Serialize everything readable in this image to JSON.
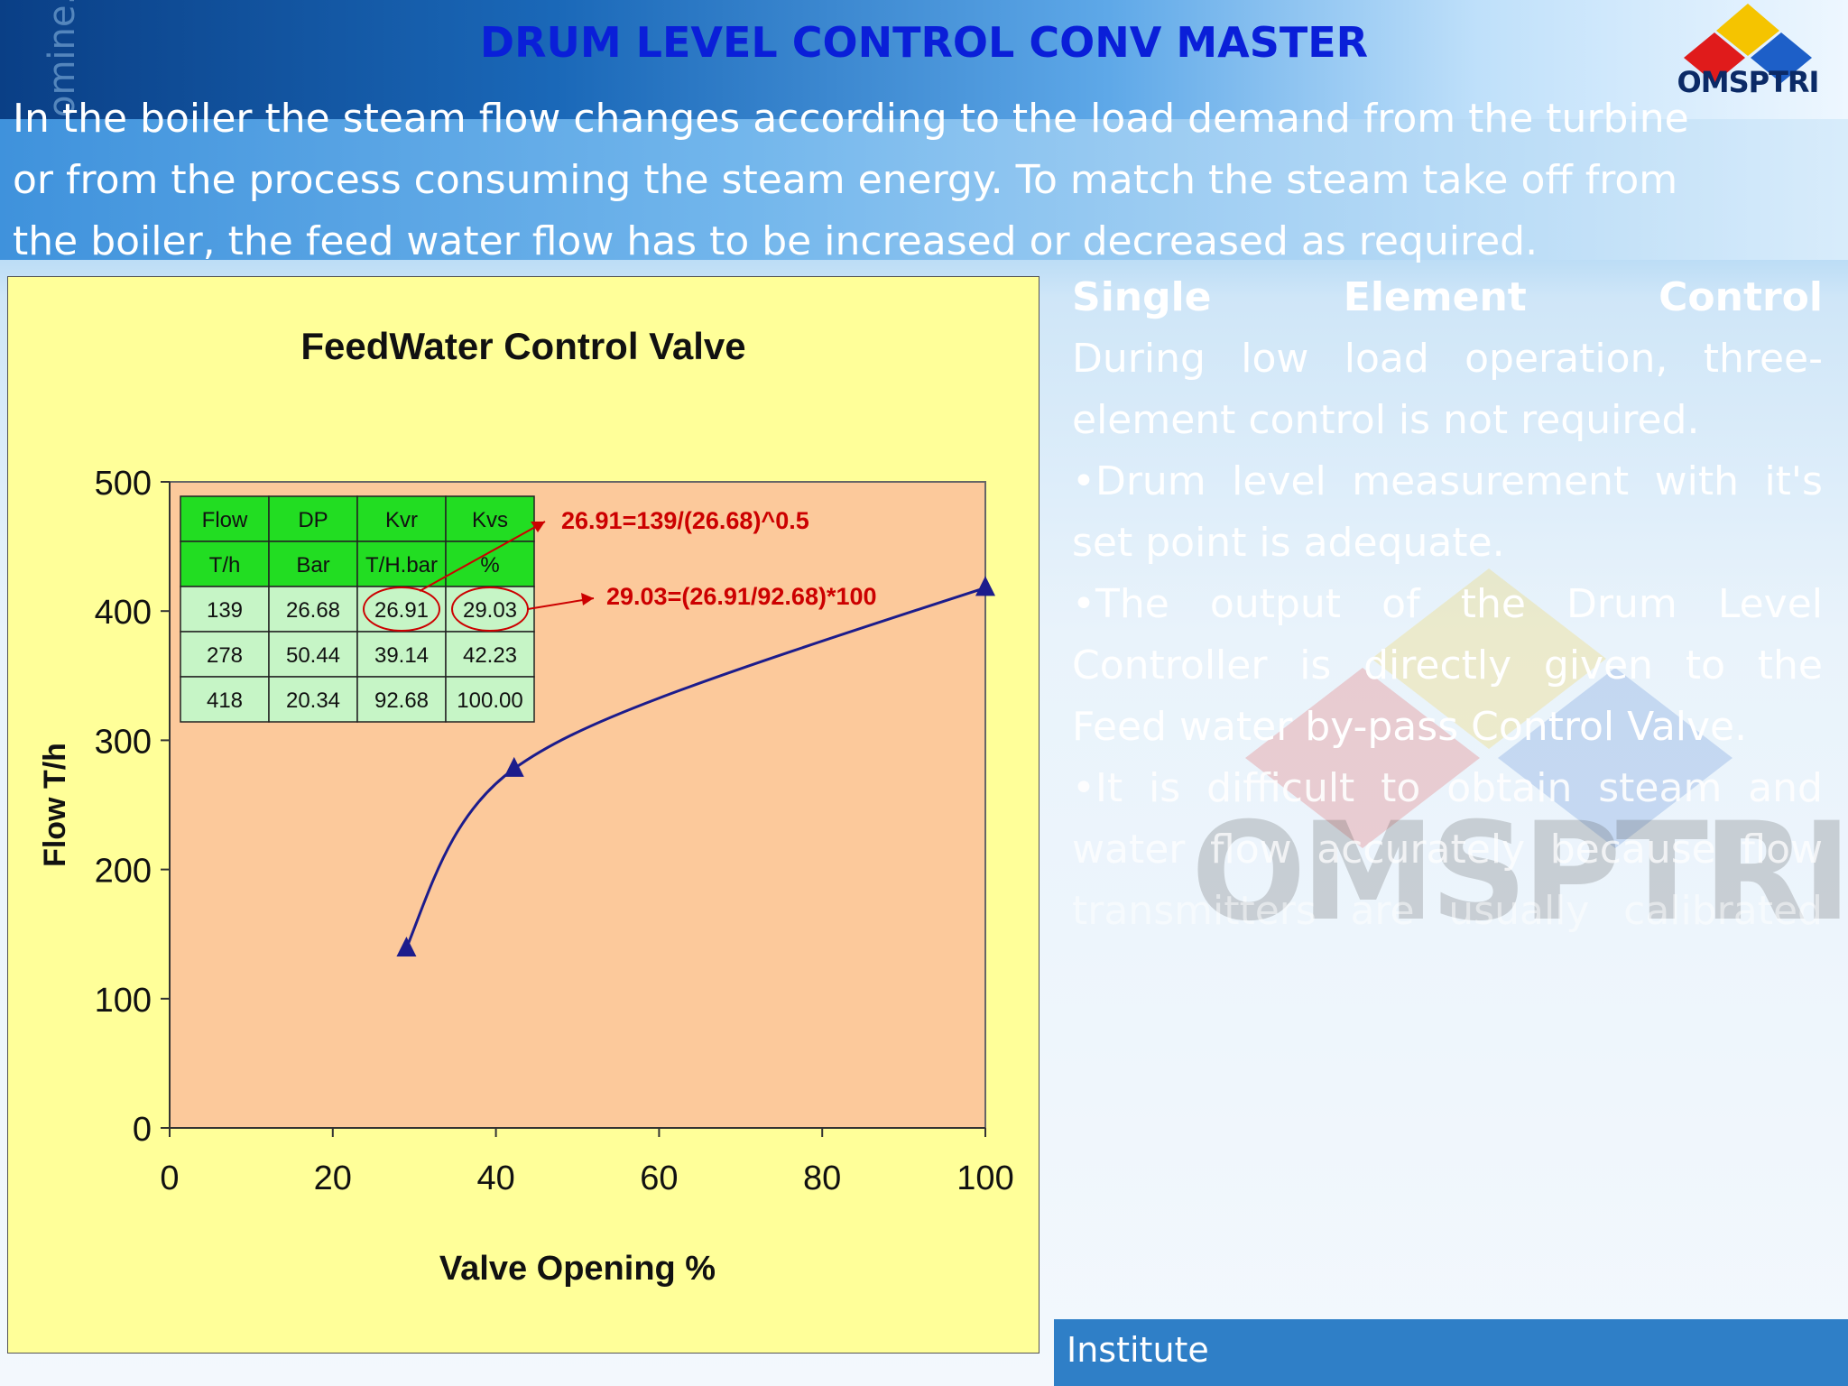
{
  "slide": {
    "title": "DRUM LEVEL CONTROL CONV MASTER",
    "logo_text": "OMSPTRI",
    "intro_lines": [
      "In the boiler the steam flow changes according to the load demand from the turbine",
      "or from the process consuming the steam energy. To match the steam take off from",
      "the boiler, the feed water flow has to be increased or decreased as required."
    ],
    "right_heading_words": [
      "Single",
      "Element",
      "Control"
    ],
    "right_lines": [
      {
        "words": [
          "During",
          "low",
          "load",
          "operation,",
          "three-"
        ]
      },
      {
        "words": [
          "element control is not required."
        ],
        "left": true
      },
      {
        "words": [
          "•Drum",
          "level",
          "measurement",
          "with",
          "it's"
        ]
      },
      {
        "words": [
          "set point is adequate."
        ],
        "left": true
      },
      {
        "words": [
          "•The",
          "output",
          "of",
          "the",
          "Drum",
          "Level"
        ]
      },
      {
        "words": [
          "Controller",
          "is",
          "directly",
          "given",
          "to",
          "the"
        ]
      },
      {
        "words": [
          "Feed water by-pass Control Valve."
        ],
        "left": true
      },
      {
        "words": [
          "•It",
          "is",
          "difficult",
          "to",
          "obtain",
          "steam",
          "and"
        ]
      },
      {
        "words": [
          "water",
          "flow",
          "accurately",
          "because",
          "flow"
        ]
      },
      {
        "words": [
          "transmitters",
          "are",
          "usually",
          "calibrated"
        ]
      }
    ],
    "footer_text": "Institute",
    "colors": {
      "title": "#0a1fd8",
      "footer": "#2f7fc7",
      "plot_bg": "#fcc99b",
      "chart_bg": "#ffff99",
      "series": "#1c1c8c",
      "annotation": "#cc0000"
    }
  },
  "chart_data": {
    "type": "line",
    "title": "FeedWater Control Valve",
    "xlabel": "Valve Opening %",
    "ylabel": "Flow T/h",
    "xlim": [
      0,
      100
    ],
    "ylim": [
      0,
      500
    ],
    "xticks": [
      0,
      20,
      40,
      60,
      80,
      100
    ],
    "yticks": [
      0,
      100,
      200,
      300,
      400,
      500
    ],
    "grid": false,
    "series": [
      {
        "x": [
          29.03,
          42.23,
          100.0
        ],
        "y": [
          139,
          278,
          418
        ],
        "marker": "triangle"
      }
    ],
    "table": {
      "headers": [
        "Flow",
        "DP",
        "Kvr",
        "Kvs"
      ],
      "units": [
        "T/h",
        "Bar",
        "T/H.bar",
        "%"
      ],
      "rows": [
        [
          "139",
          "26.68",
          "26.91",
          "29.03"
        ],
        [
          "278",
          "50.44",
          "39.14",
          "42.23"
        ],
        [
          "418",
          "20.34",
          "92.68",
          "100.00"
        ]
      ]
    },
    "annotations": [
      "26.91=139/(26.68)^0.5",
      "29.03=(26.91/92.68)*100"
    ]
  }
}
